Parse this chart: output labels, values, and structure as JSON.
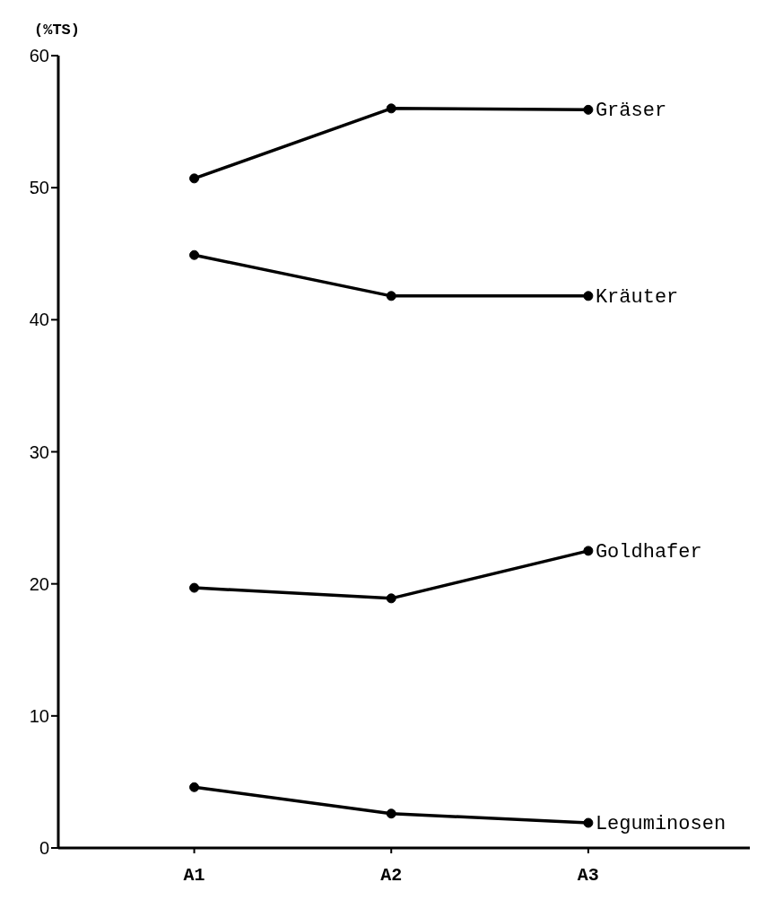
{
  "chart_data": {
    "type": "line",
    "ylabel": "(%TS)",
    "categories": [
      "A1",
      "A2",
      "A3"
    ],
    "series": [
      {
        "name": "Gräser",
        "color": "#000000",
        "values": [
          50.7,
          56.0,
          55.9
        ]
      },
      {
        "name": "Kräuter",
        "color": "#000000",
        "values": [
          44.9,
          41.8,
          41.8
        ]
      },
      {
        "name": "Goldhafer",
        "color": "#000000",
        "values": [
          19.7,
          18.9,
          22.5
        ]
      },
      {
        "name": "Leguminosen",
        "color": "#000000",
        "values": [
          4.6,
          2.6,
          1.9
        ]
      }
    ],
    "ylim": [
      0,
      60
    ],
    "yticks": [
      0,
      10,
      20,
      30,
      40,
      50,
      60
    ],
    "grid": false,
    "marker": "circle",
    "line_style": "solid"
  }
}
